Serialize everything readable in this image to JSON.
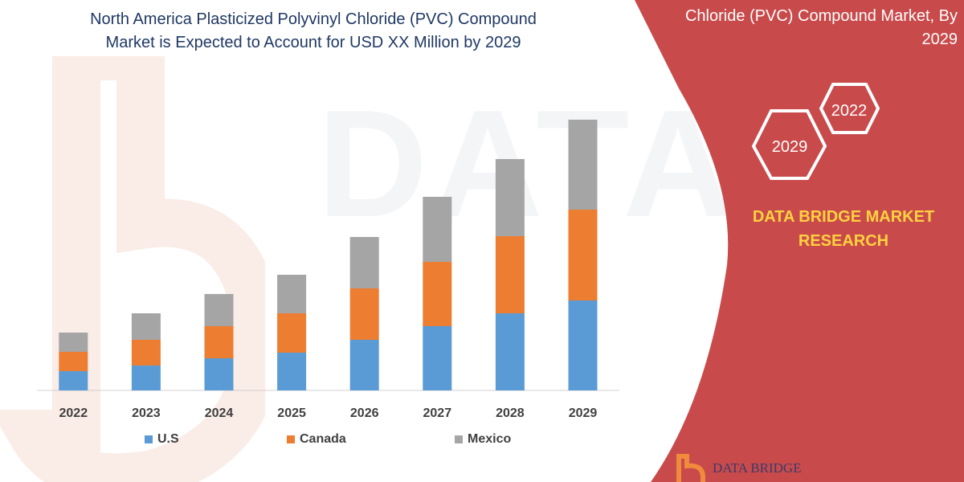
{
  "header": {
    "title_line1": "North America Plasticized Polyvinyl Chloride (PVC) Compound",
    "title_line2": "Market is Expected to Account for USD XX Million by 2029"
  },
  "panel": {
    "title_line1": "Chloride (PVC) Compound Market, By",
    "title_line2": "2029",
    "hex_front": "2029",
    "hex_back": "2022",
    "brand_line1": "DATA BRIDGE MARKET",
    "brand_line2": "RESEARCH",
    "logo_text": "DATA BRIDGE",
    "watermark": "DATABRIDGE",
    "colors": {
      "panel": "#c94a4b",
      "brand_text": "#ffd23f"
    }
  },
  "chart_data": {
    "type": "bar",
    "stacked": true,
    "categories": [
      "2022",
      "2023",
      "2024",
      "2025",
      "2026",
      "2027",
      "2028",
      "2029"
    ],
    "series": [
      {
        "name": "U.S",
        "color": "#5b9bd5",
        "values": [
          24,
          31,
          40,
          47,
          63,
          80,
          96,
          112
        ]
      },
      {
        "name": "Canada",
        "color": "#ed7d31",
        "values": [
          24,
          32,
          40,
          49,
          64,
          80,
          96,
          113
        ]
      },
      {
        "name": "Mexico",
        "color": "#a5a5a5",
        "values": [
          24,
          33,
          40,
          48,
          64,
          81,
          96,
          112
        ]
      }
    ],
    "ylim": [
      0,
      340
    ],
    "grid": false,
    "legend": "bottom"
  }
}
